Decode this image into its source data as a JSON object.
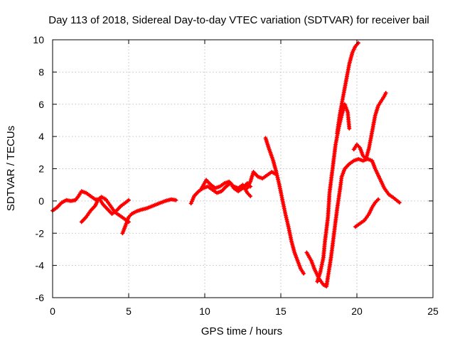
{
  "chart_data": {
    "type": "scatter",
    "title": "Day 113 of 2018, Sidereal Day-to-day VTEC variation (SDTVAR) for receiver bail",
    "xlabel": "GPS time / hours",
    "ylabel": "SDTVAR / TECUs",
    "xlim": [
      0,
      25
    ],
    "ylim": [
      -6,
      10
    ],
    "xticks": [
      0,
      5,
      10,
      15,
      20,
      25
    ],
    "yticks": [
      -6,
      -4,
      -2,
      0,
      2,
      4,
      6,
      8,
      10
    ],
    "grid": true,
    "marker": "plus",
    "color": "#ff0000",
    "tracks": [
      [
        [
          0.0,
          -0.6
        ],
        [
          0.3,
          -0.4
        ],
        [
          0.6,
          -0.1
        ],
        [
          0.9,
          0.05
        ],
        [
          1.2,
          0.0
        ],
        [
          1.5,
          0.05
        ],
        [
          1.7,
          0.3
        ],
        [
          1.9,
          0.6
        ],
        [
          2.2,
          0.5
        ],
        [
          2.5,
          0.3
        ],
        [
          2.8,
          0.1
        ],
        [
          3.1,
          0.1
        ],
        [
          3.3,
          -0.2
        ],
        [
          3.6,
          -0.5
        ],
        [
          3.9,
          -0.8
        ],
        [
          4.2,
          -0.6
        ],
        [
          4.5,
          -0.3
        ],
        [
          4.8,
          -0.1
        ],
        [
          5.0,
          0.05
        ]
      ],
      [
        [
          1.9,
          -1.3
        ],
        [
          2.2,
          -1.0
        ],
        [
          2.5,
          -0.6
        ],
        [
          2.8,
          -0.3
        ],
        [
          3.0,
          0.1
        ],
        [
          3.2,
          0.25
        ],
        [
          3.5,
          0.1
        ],
        [
          3.8,
          -0.3
        ],
        [
          4.1,
          -0.7
        ],
        [
          4.4,
          -0.9
        ],
        [
          4.7,
          -1.1
        ],
        [
          5.0,
          -1.3
        ]
      ],
      [
        [
          4.6,
          -2.0
        ],
        [
          4.8,
          -1.5
        ],
        [
          5.0,
          -1.0
        ],
        [
          5.2,
          -0.8
        ],
        [
          5.5,
          -0.65
        ],
        [
          5.8,
          -0.55
        ],
        [
          6.2,
          -0.45
        ],
        [
          6.6,
          -0.3
        ],
        [
          7.0,
          -0.15
        ],
        [
          7.4,
          0.0
        ],
        [
          7.8,
          0.1
        ],
        [
          8.1,
          0.05
        ]
      ],
      [
        [
          9.1,
          -0.15
        ],
        [
          9.3,
          0.3
        ],
        [
          9.6,
          0.6
        ],
        [
          9.9,
          0.8
        ],
        [
          10.2,
          0.9
        ],
        [
          10.5,
          0.7
        ],
        [
          10.8,
          0.5
        ],
        [
          11.1,
          0.6
        ],
        [
          11.4,
          0.9
        ],
        [
          11.7,
          1.1
        ],
        [
          11.9,
          0.8
        ],
        [
          12.2,
          0.6
        ],
        [
          12.5,
          0.8
        ],
        [
          12.8,
          1.1
        ],
        [
          13.0,
          0.9
        ]
      ],
      [
        [
          9.8,
          0.8
        ],
        [
          10.1,
          1.3
        ],
        [
          10.4,
          1.0
        ],
        [
          10.7,
          0.8
        ],
        [
          11.0,
          0.9
        ],
        [
          11.3,
          1.1
        ],
        [
          11.6,
          1.2
        ],
        [
          11.9,
          0.9
        ],
        [
          12.2,
          0.8
        ],
        [
          12.5,
          1.0
        ],
        [
          12.8,
          0.5
        ],
        [
          13.0,
          0.3
        ]
      ],
      [
        [
          12.8,
          0.8
        ],
        [
          13.0,
          1.2
        ],
        [
          13.2,
          1.8
        ],
        [
          13.5,
          1.5
        ],
        [
          13.8,
          1.4
        ],
        [
          14.1,
          1.6
        ],
        [
          14.4,
          1.8
        ],
        [
          14.6,
          1.7
        ]
      ],
      [
        [
          14.0,
          3.9
        ],
        [
          14.2,
          3.3
        ],
        [
          14.5,
          2.5
        ],
        [
          14.7,
          1.8
        ],
        [
          14.9,
          1.0
        ],
        [
          15.1,
          0.1
        ],
        [
          15.3,
          -0.8
        ],
        [
          15.5,
          -1.6
        ],
        [
          15.7,
          -2.5
        ],
        [
          15.9,
          -3.2
        ],
        [
          16.1,
          -3.7
        ],
        [
          16.3,
          -4.2
        ],
        [
          16.5,
          -4.5
        ]
      ],
      [
        [
          16.7,
          -3.2
        ],
        [
          17.0,
          -3.7
        ],
        [
          17.2,
          -4.2
        ],
        [
          17.5,
          -4.8
        ],
        [
          17.8,
          -5.2
        ],
        [
          18.0,
          -5.3
        ],
        [
          18.1,
          -4.7
        ],
        [
          18.3,
          -3.5
        ],
        [
          18.5,
          -2.0
        ],
        [
          18.7,
          -0.5
        ],
        [
          18.9,
          0.8
        ],
        [
          19.0,
          1.5
        ],
        [
          19.2,
          2.0
        ],
        [
          19.5,
          2.3
        ],
        [
          19.8,
          2.5
        ],
        [
          20.1,
          2.6
        ],
        [
          20.4,
          2.5
        ],
        [
          20.7,
          2.6
        ],
        [
          21.0,
          2.5
        ],
        [
          21.2,
          2.0
        ],
        [
          21.5,
          1.4
        ],
        [
          21.8,
          0.8
        ],
        [
          22.1,
          0.4
        ],
        [
          22.4,
          0.2
        ],
        [
          22.8,
          -0.1
        ]
      ],
      [
        [
          17.4,
          -5.0
        ],
        [
          17.6,
          -4.4
        ],
        [
          17.8,
          -3.5
        ],
        [
          17.9,
          -2.5
        ],
        [
          18.1,
          -1.0
        ],
        [
          18.2,
          0.5
        ],
        [
          18.4,
          2.0
        ],
        [
          18.6,
          3.5
        ],
        [
          18.8,
          4.5
        ],
        [
          19.0,
          5.3
        ],
        [
          19.2,
          6.0
        ],
        [
          19.4,
          5.5
        ],
        [
          19.5,
          4.5
        ]
      ],
      [
        [
          18.7,
          4.2
        ],
        [
          18.9,
          5.5
        ],
        [
          19.1,
          6.5
        ],
        [
          19.3,
          7.5
        ],
        [
          19.5,
          8.5
        ],
        [
          19.7,
          9.2
        ],
        [
          19.9,
          9.6
        ],
        [
          20.1,
          9.8
        ]
      ],
      [
        [
          19.8,
          3.2
        ],
        [
          20.0,
          3.5
        ],
        [
          20.2,
          3.3
        ],
        [
          20.4,
          2.8
        ],
        [
          20.6,
          2.6
        ],
        [
          20.8,
          3.3
        ],
        [
          21.0,
          4.3
        ],
        [
          21.2,
          5.3
        ],
        [
          21.4,
          5.9
        ],
        [
          21.6,
          6.2
        ],
        [
          21.8,
          6.5
        ],
        [
          21.9,
          6.7
        ]
      ],
      [
        [
          19.9,
          -1.6
        ],
        [
          20.2,
          -1.4
        ],
        [
          20.5,
          -1.2
        ],
        [
          20.8,
          -0.8
        ],
        [
          21.0,
          -0.4
        ],
        [
          21.2,
          -0.1
        ],
        [
          21.4,
          0.1
        ]
      ]
    ]
  }
}
